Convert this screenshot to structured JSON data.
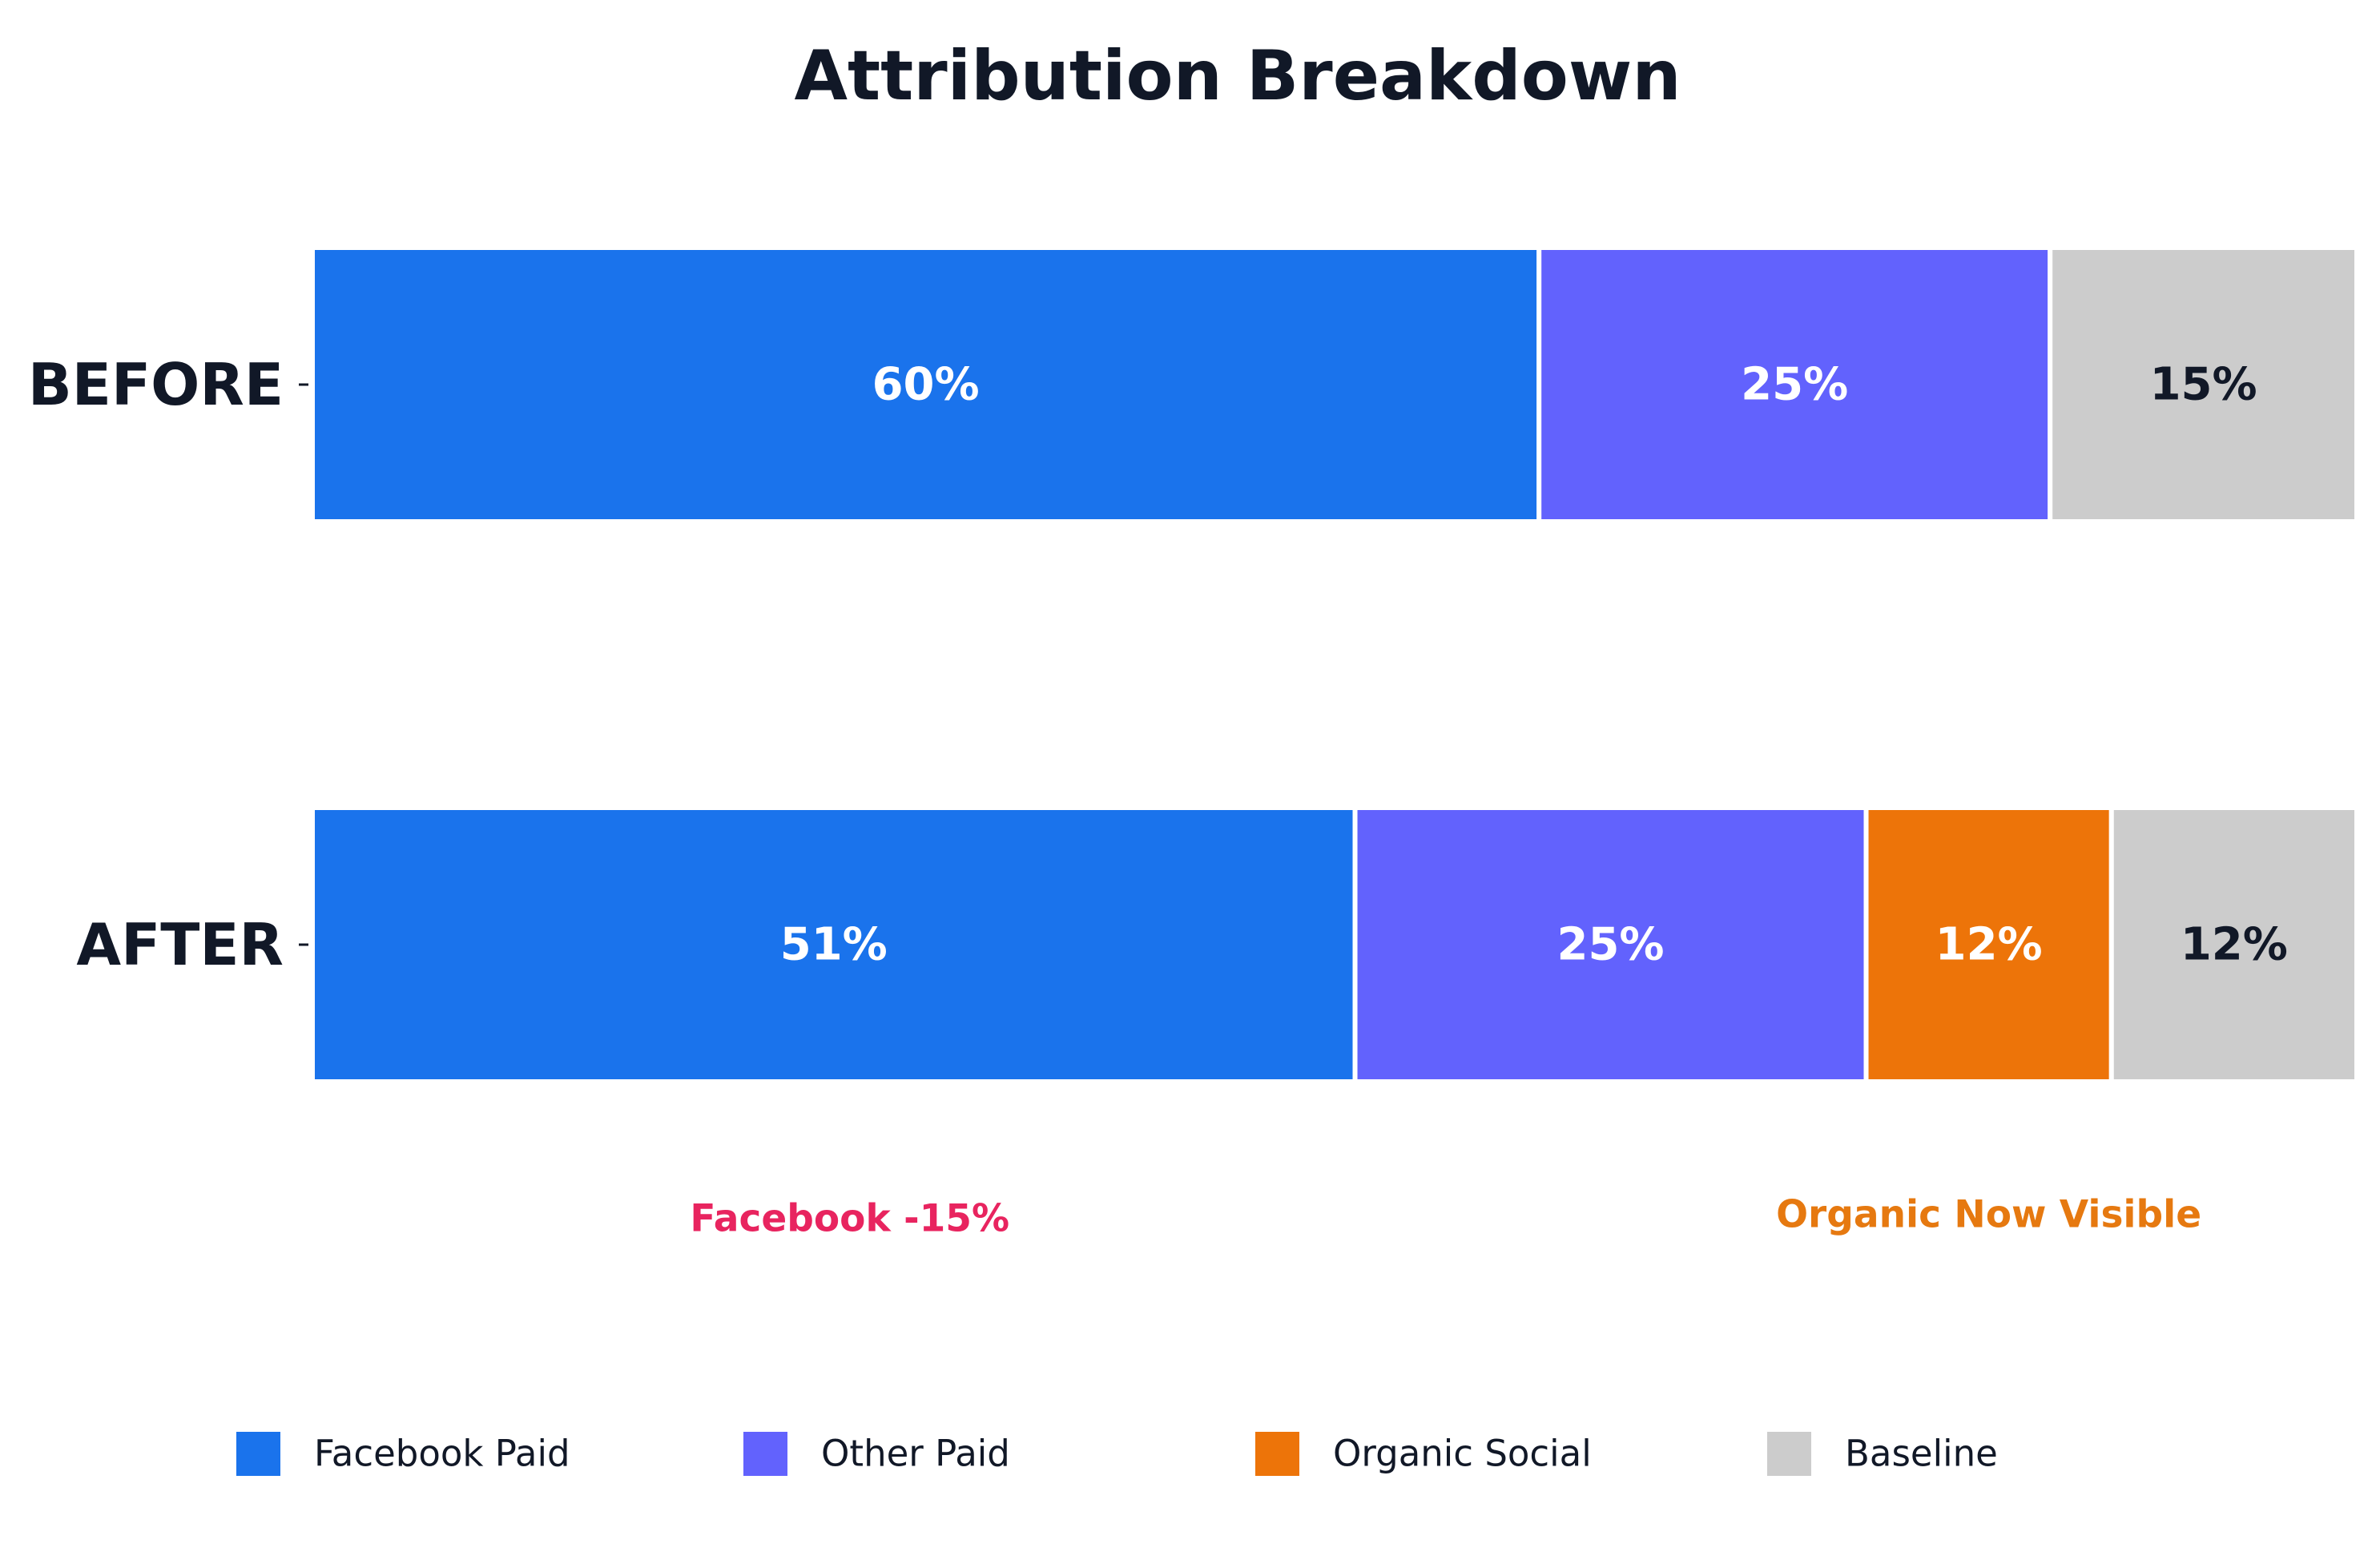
{
  "chart_data": {
    "type": "bar",
    "orientation": "horizontal",
    "stacked": true,
    "title": "Attribution Breakdown",
    "xlabel": "",
    "ylabel": "",
    "xlim": [
      0,
      100
    ],
    "grid": false,
    "categories": [
      "BEFORE",
      "AFTER"
    ],
    "series": [
      {
        "name": "Facebook Paid",
        "color": "#1a73ec",
        "label_color": "#ffffff",
        "values": [
          60,
          51
        ],
        "labels": [
          "60%",
          "51%"
        ]
      },
      {
        "name": "Other Paid",
        "color": "#6262fd",
        "label_color": "#ffffff",
        "values": [
          25,
          25
        ],
        "labels": [
          "25%",
          "25%"
        ]
      },
      {
        "name": "Organic Social",
        "color": "#ed7409",
        "label_color": "#ffffff",
        "values": [
          0,
          12
        ],
        "labels": [
          "",
          "12%"
        ]
      },
      {
        "name": "Baseline",
        "color": "#cccccc",
        "label_color": "#111827",
        "values": [
          15,
          12
        ],
        "labels": [
          "15%",
          "12%"
        ]
      }
    ],
    "annotations": [
      {
        "text": "Facebook -15%",
        "color": "#e8245f",
        "series": "Facebook Paid"
      },
      {
        "text": "Organic Now Visible",
        "color": "#e67910",
        "series": "Organic Social"
      }
    ],
    "legend": {
      "placement": "bottom",
      "entries": [
        "Facebook Paid",
        "Other Paid",
        "Organic Social",
        "Baseline"
      ]
    }
  }
}
